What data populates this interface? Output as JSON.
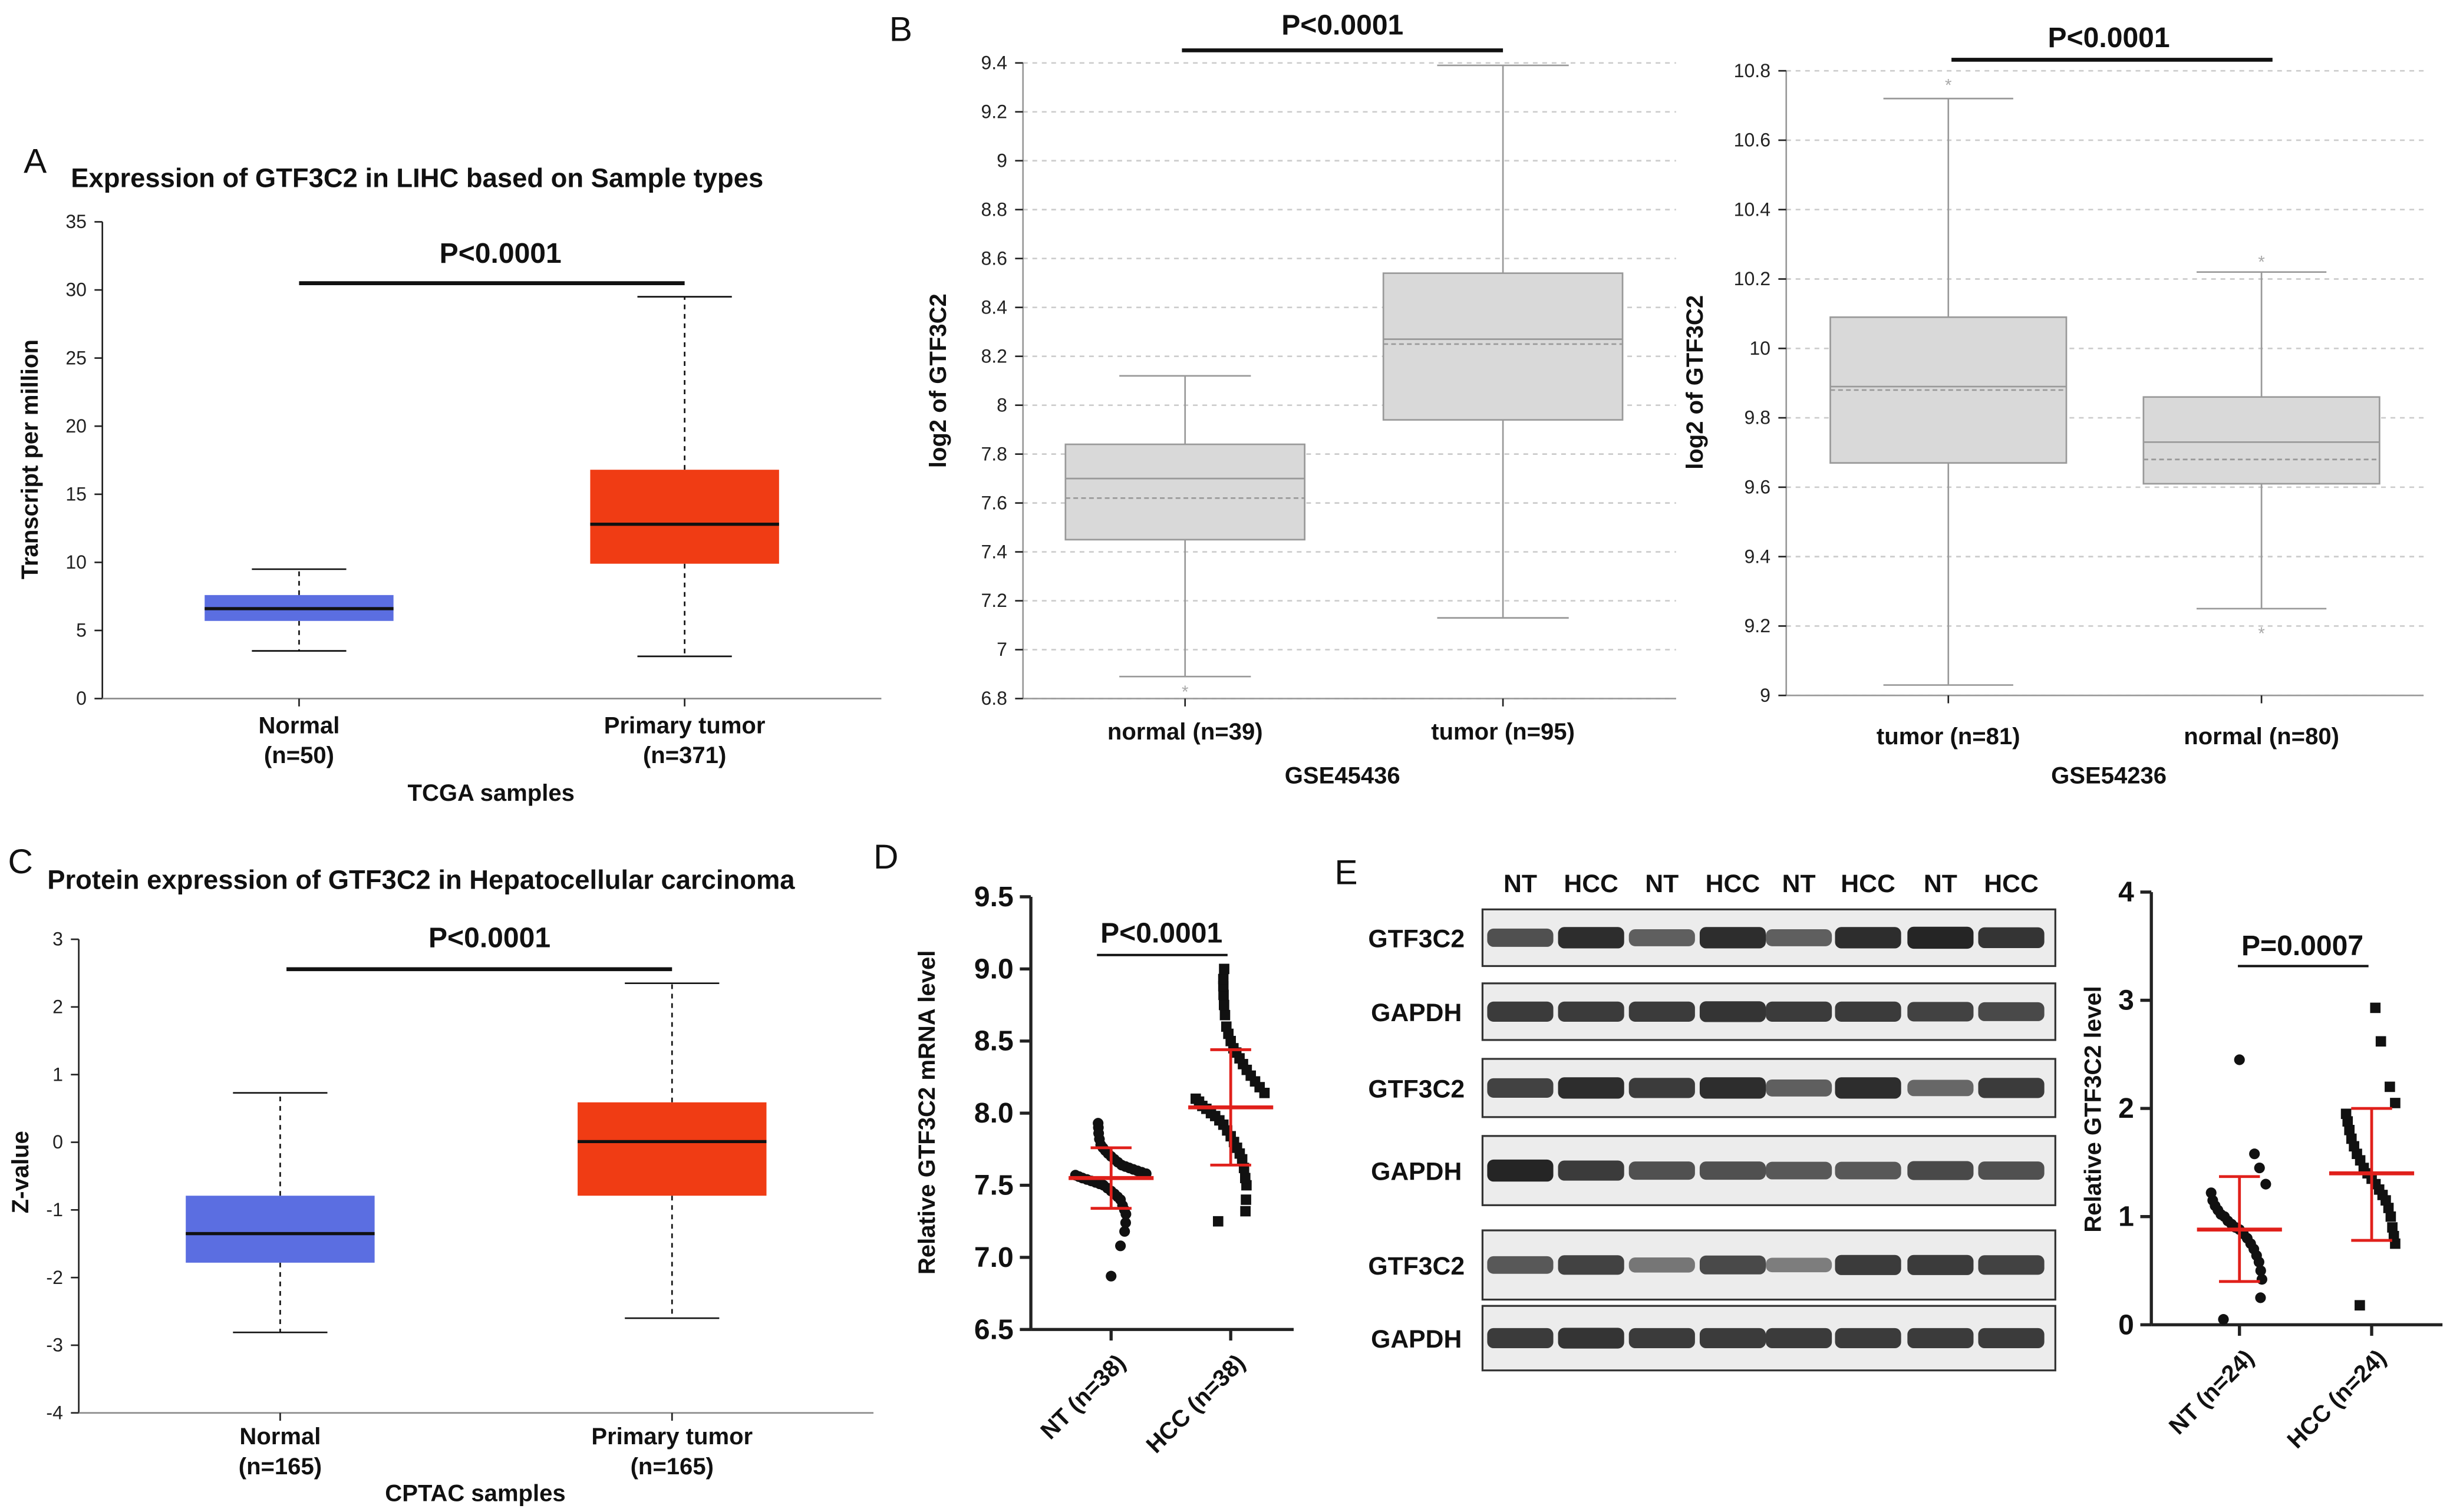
{
  "panel_letters": [
    "A",
    "B",
    "C",
    "D",
    "E"
  ],
  "chart_data": [
    {
      "type": "box",
      "title": "Expression of GTF3C2 in LIHC based on Sample types",
      "xlabel": "TCGA samples",
      "ylabel": "Transcript per million",
      "categories": [
        "Normal",
        "Primary tumor"
      ],
      "category_n": [
        "(n=50)",
        "(n=371)"
      ],
      "ylim": [
        0,
        35
      ],
      "yticks": [
        "0",
        "5",
        "10",
        "15",
        "20",
        "25",
        "30",
        "35"
      ],
      "yvalues": [
        0,
        5,
        10,
        15,
        20,
        25,
        30,
        35
      ],
      "colors": [
        "#5b6ee1",
        "#f03c14"
      ],
      "boxes": [
        {
          "whisker_low": 3.5,
          "q1": 5.7,
          "median": 6.6,
          "q3": 7.6,
          "whisker_high": 9.5
        },
        {
          "whisker_low": 3.1,
          "q1": 9.9,
          "median": 12.8,
          "q3": 16.8,
          "whisker_high": 29.5
        }
      ],
      "significance": "P<0.0001"
    },
    {
      "type": "box",
      "xlabel": "GSE45436",
      "ylabel": "log2 of GTF3C2",
      "categories": [
        "normal (n=39)",
        "tumor (n=95)"
      ],
      "ylim": [
        6.8,
        9.4
      ],
      "yticks": [
        "6.8",
        "7",
        "7.2",
        "7.4",
        "7.6",
        "7.8",
        "8",
        "8.2",
        "8.4",
        "8.6",
        "8.8",
        "9",
        "9.2",
        "9.4"
      ],
      "yvalues": [
        6.8,
        7,
        7.2,
        7.4,
        7.6,
        7.8,
        8,
        8.2,
        8.4,
        8.6,
        8.8,
        9,
        9.2,
        9.4
      ],
      "grid": true,
      "colors": [
        "#d9d9d9",
        "#d9d9d9"
      ],
      "boxes": [
        {
          "whisker_low": 6.89,
          "q1": 7.45,
          "median": 7.7,
          "mean": 7.62,
          "q3": 7.84,
          "whisker_high": 8.12,
          "outliers": [
            6.83
          ]
        },
        {
          "whisker_low": 7.13,
          "q1": 7.94,
          "median": 8.27,
          "mean": 8.25,
          "q3": 8.54,
          "whisker_high": 9.39,
          "outliers": []
        }
      ],
      "significance": "P<0.0001"
    },
    {
      "type": "box",
      "xlabel": "GSE54236",
      "ylabel": "log2 of GTF3C2",
      "categories": [
        "tumor (n=81)",
        "normal (n=80)"
      ],
      "ylim": [
        9,
        10.8
      ],
      "yticks": [
        "9",
        "9.2",
        "9.4",
        "9.6",
        "9.8",
        "10",
        "10.2",
        "10.4",
        "10.6",
        "10.8"
      ],
      "yvalues": [
        9,
        9.2,
        9.4,
        9.6,
        9.8,
        10,
        10.2,
        10.4,
        10.6,
        10.8
      ],
      "grid": true,
      "colors": [
        "#d9d9d9",
        "#d9d9d9"
      ],
      "boxes": [
        {
          "whisker_low": 9.03,
          "q1": 9.67,
          "median": 9.89,
          "mean": 9.88,
          "q3": 10.09,
          "whisker_high": 10.72,
          "outliers": [
            10.76
          ]
        },
        {
          "whisker_low": 9.25,
          "q1": 9.61,
          "median": 9.73,
          "mean": 9.68,
          "q3": 9.86,
          "whisker_high": 10.22,
          "outliers": [
            10.25,
            9.18
          ]
        }
      ],
      "significance": "P<0.0001"
    },
    {
      "type": "box",
      "title": "Protein expression of GTF3C2 in Hepatocellular carcinoma",
      "xlabel": "CPTAC samples",
      "ylabel": "Z-value",
      "categories": [
        "Normal",
        "Primary tumor"
      ],
      "category_n": [
        "(n=165)",
        "(n=165)"
      ],
      "ylim": [
        -4,
        3
      ],
      "yticks": [
        "-4",
        "-3",
        "-2",
        "-1",
        "0",
        "1",
        "2",
        "3"
      ],
      "yvalues": [
        -4,
        -3,
        -2,
        -1,
        0,
        1,
        2,
        3
      ],
      "colors": [
        "#5b6ee1",
        "#f03c14"
      ],
      "boxes": [
        {
          "whisker_low": -2.81,
          "q1": -1.78,
          "median": -1.35,
          "q3": -0.79,
          "whisker_high": 0.73
        },
        {
          "whisker_low": -2.6,
          "q1": -0.79,
          "median": 0.01,
          "q3": 0.59,
          "whisker_high": 2.35
        }
      ],
      "significance": "P<0.0001"
    },
    {
      "type": "scatter",
      "ylabel": "Relative GTF3C2 mRNA level",
      "categories": [
        "NT (n=38)",
        "HCC (n=38)"
      ],
      "ylim": [
        6.5,
        9.5
      ],
      "yticks": [
        "6.5",
        "7.0",
        "7.5",
        "8.0",
        "8.5",
        "9.0",
        "9.5"
      ],
      "yvalues": [
        6.5,
        7,
        7.5,
        8,
        8.5,
        9,
        9.5
      ],
      "markers": [
        "circle",
        "square"
      ],
      "error_color": "#e0201b",
      "groups": [
        {
          "mean": 7.55,
          "sd_low": 7.34,
          "sd_high": 7.76,
          "values": [
            6.87,
            7.08,
            7.18,
            7.24,
            7.3,
            7.33,
            7.36,
            7.4,
            7.42,
            7.44,
            7.46,
            7.48,
            7.5,
            7.51,
            7.52,
            7.53,
            7.54,
            7.55,
            7.56,
            7.57,
            7.58,
            7.59,
            7.6,
            7.61,
            7.62,
            7.63,
            7.64,
            7.66,
            7.68,
            7.7,
            7.72,
            7.74,
            7.76,
            7.78,
            7.82,
            7.86,
            7.9,
            7.93
          ]
        },
        {
          "mean": 8.04,
          "sd_low": 7.64,
          "sd_high": 8.44,
          "values": [
            7.25,
            7.32,
            7.4,
            7.5,
            7.55,
            7.62,
            7.68,
            7.72,
            7.76,
            7.8,
            7.84,
            7.88,
            7.92,
            7.95,
            7.98,
            8.0,
            8.03,
            8.05,
            8.08,
            8.1,
            8.14,
            8.18,
            8.22,
            8.26,
            8.3,
            8.34,
            8.38,
            8.42,
            8.45,
            8.5,
            8.55,
            8.6,
            8.68,
            8.75,
            8.82,
            8.88,
            8.93,
            9.0
          ]
        }
      ],
      "significance": "P<0.0001"
    },
    {
      "type": "scatter",
      "ylabel": "Relative GTF3C2 level",
      "categories": [
        "NT (n=24)",
        "HCC (n=24)"
      ],
      "ylim": [
        0,
        4
      ],
      "yticks": [
        "0",
        "1",
        "2",
        "3",
        "4"
      ],
      "yvalues": [
        0,
        1,
        2,
        3,
        4
      ],
      "markers": [
        "circle",
        "square"
      ],
      "error_color": "#e0201b",
      "groups": [
        {
          "mean": 0.88,
          "sd_low": 0.4,
          "sd_high": 1.37,
          "values": [
            0.05,
            0.25,
            0.42,
            0.5,
            0.58,
            0.64,
            0.7,
            0.75,
            0.8,
            0.84,
            0.88,
            0.9,
            0.93,
            0.96,
            1.0,
            1.02,
            1.06,
            1.1,
            1.15,
            1.22,
            1.3,
            1.45,
            1.58,
            2.45
          ]
        },
        {
          "mean": 1.4,
          "sd_low": 0.78,
          "sd_high": 2.0,
          "values": [
            0.18,
            0.75,
            0.82,
            0.9,
            1.0,
            1.08,
            1.15,
            1.2,
            1.25,
            1.3,
            1.35,
            1.4,
            1.45,
            1.52,
            1.58,
            1.65,
            1.72,
            1.8,
            1.88,
            1.95,
            2.05,
            2.2,
            2.62,
            2.93
          ]
        }
      ],
      "significance": "P=0.0007"
    }
  ],
  "western_blot": {
    "lanes": [
      "NT",
      "HCC",
      "NT",
      "HCC",
      "NT",
      "HCC",
      "NT",
      "HCC"
    ],
    "rows": [
      {
        "label": "GTF3C2",
        "intensity": [
          0.7,
          0.95,
          0.6,
          0.95,
          0.6,
          0.95,
          1.0,
          0.9
        ]
      },
      {
        "label": "GAPDH",
        "intensity": [
          0.85,
          0.85,
          0.85,
          0.9,
          0.85,
          0.85,
          0.8,
          0.75
        ]
      },
      {
        "label": "GTF3C2",
        "intensity": [
          0.8,
          0.95,
          0.85,
          0.95,
          0.6,
          0.95,
          0.55,
          0.85
        ]
      },
      {
        "label": "GAPDH",
        "intensity": [
          1.0,
          0.85,
          0.7,
          0.7,
          0.65,
          0.65,
          0.75,
          0.7
        ]
      },
      {
        "label": "GTF3C2",
        "intensity": [
          0.65,
          0.8,
          0.45,
          0.75,
          0.4,
          0.85,
          0.85,
          0.8
        ]
      },
      {
        "label": "GAPDH",
        "intensity": [
          0.85,
          0.9,
          0.85,
          0.85,
          0.85,
          0.85,
          0.85,
          0.85
        ]
      }
    ]
  }
}
